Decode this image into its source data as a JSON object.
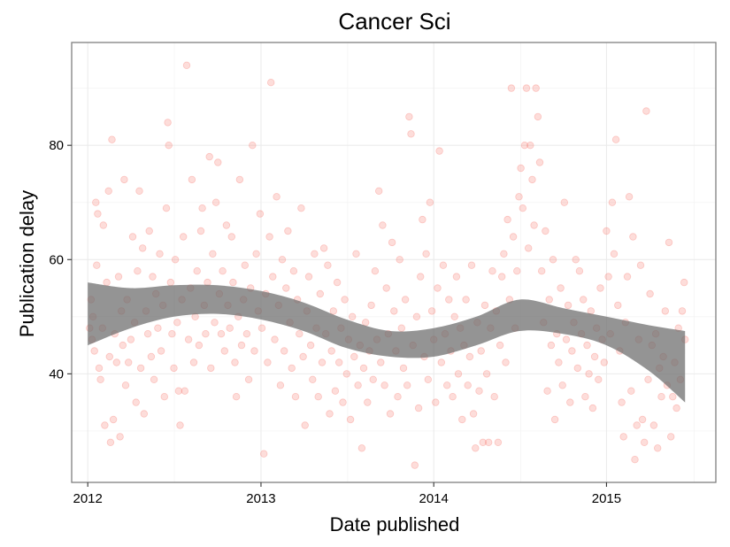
{
  "chart_data": {
    "type": "scatter",
    "title": "Cancer Sci",
    "xlabel": "Date published",
    "ylabel": "Publication delay",
    "x_ticks": [
      "2012",
      "2013",
      "2014",
      "2015"
    ],
    "y_ticks": [
      40,
      60,
      80
    ],
    "xlim": [
      "2011-11-28",
      "2015-08-20"
    ],
    "ylim": [
      21,
      98
    ],
    "grid": true,
    "point_color": "#f8766d",
    "point_opacity": 0.25,
    "band_color": "#6b6b6b",
    "points": [
      [
        "2012-01-05",
        48
      ],
      [
        "2012-01-08",
        53
      ],
      [
        "2012-01-10",
        46
      ],
      [
        "2012-01-12",
        50
      ],
      [
        "2012-01-15",
        44
      ],
      [
        "2012-01-18",
        70
      ],
      [
        "2012-01-20",
        59
      ],
      [
        "2012-01-22",
        68
      ],
      [
        "2012-01-25",
        41
      ],
      [
        "2012-01-28",
        39
      ],
      [
        "2012-02-01",
        48
      ],
      [
        "2012-02-03",
        66
      ],
      [
        "2012-02-06",
        31
      ],
      [
        "2012-02-10",
        56
      ],
      [
        "2012-02-14",
        72
      ],
      [
        "2012-02-16",
        43
      ],
      [
        "2012-02-18",
        28
      ],
      [
        "2012-02-21",
        81
      ],
      [
        "2012-02-24",
        32
      ],
      [
        "2012-02-27",
        47
      ],
      [
        "2012-03-02",
        42
      ],
      [
        "2012-03-06",
        57
      ],
      [
        "2012-03-09",
        29
      ],
      [
        "2012-03-12",
        51
      ],
      [
        "2012-03-15",
        45
      ],
      [
        "2012-03-18",
        74
      ],
      [
        "2012-03-21",
        38
      ],
      [
        "2012-03-24",
        53
      ],
      [
        "2012-03-27",
        42
      ],
      [
        "2012-04-01",
        46
      ],
      [
        "2012-04-05",
        64
      ],
      [
        "2012-04-09",
        49
      ],
      [
        "2012-04-12",
        35
      ],
      [
        "2012-04-15",
        58
      ],
      [
        "2012-04-19",
        72
      ],
      [
        "2012-04-22",
        41
      ],
      [
        "2012-04-26",
        62
      ],
      [
        "2012-04-29",
        33
      ],
      [
        "2012-05-03",
        51
      ],
      [
        "2012-05-07",
        47
      ],
      [
        "2012-05-10",
        65
      ],
      [
        "2012-05-14",
        43
      ],
      [
        "2012-05-17",
        57
      ],
      [
        "2012-05-20",
        39
      ],
      [
        "2012-05-24",
        54
      ],
      [
        "2012-05-28",
        48
      ],
      [
        "2012-06-01",
        61
      ],
      [
        "2012-06-04",
        44
      ],
      [
        "2012-06-08",
        52
      ],
      [
        "2012-06-11",
        36
      ],
      [
        "2012-06-15",
        69
      ],
      [
        "2012-06-18",
        84
      ],
      [
        "2012-06-20",
        80
      ],
      [
        "2012-06-24",
        56
      ],
      [
        "2012-06-27",
        47
      ],
      [
        "2012-07-01",
        41
      ],
      [
        "2012-07-04",
        60
      ],
      [
        "2012-07-08",
        49
      ],
      [
        "2012-07-11",
        37
      ],
      [
        "2012-07-14",
        31
      ],
      [
        "2012-07-18",
        53
      ],
      [
        "2012-07-21",
        64
      ],
      [
        "2012-07-24",
        37
      ],
      [
        "2012-07-28",
        94
      ],
      [
        "2012-08-01",
        46
      ],
      [
        "2012-08-05",
        55
      ],
      [
        "2012-08-08",
        74
      ],
      [
        "2012-08-12",
        42
      ],
      [
        "2012-08-15",
        50
      ],
      [
        "2012-08-19",
        58
      ],
      [
        "2012-08-23",
        45
      ],
      [
        "2012-08-27",
        65
      ],
      [
        "2012-08-30",
        69
      ],
      [
        "2012-09-03",
        52
      ],
      [
        "2012-09-06",
        47
      ],
      [
        "2012-09-10",
        56
      ],
      [
        "2012-09-14",
        78
      ],
      [
        "2012-09-17",
        41
      ],
      [
        "2012-09-21",
        61
      ],
      [
        "2012-09-25",
        49
      ],
      [
        "2012-09-28",
        70
      ],
      [
        "2012-10-02",
        77
      ],
      [
        "2012-10-05",
        54
      ],
      [
        "2012-10-09",
        47
      ],
      [
        "2012-10-12",
        58
      ],
      [
        "2012-10-16",
        44
      ],
      [
        "2012-10-20",
        66
      ],
      [
        "2012-10-23",
        52
      ],
      [
        "2012-10-27",
        48
      ],
      [
        "2012-10-31",
        64
      ],
      [
        "2012-11-03",
        56
      ],
      [
        "2012-11-07",
        42
      ],
      [
        "2012-11-10",
        36
      ],
      [
        "2012-11-14",
        50
      ],
      [
        "2012-11-17",
        74
      ],
      [
        "2012-11-21",
        45
      ],
      [
        "2012-11-25",
        53
      ],
      [
        "2012-11-28",
        59
      ],
      [
        "2012-12-02",
        47
      ],
      [
        "2012-12-06",
        39
      ],
      [
        "2012-12-10",
        55
      ],
      [
        "2012-12-14",
        80
      ],
      [
        "2012-12-18",
        44
      ],
      [
        "2012-12-22",
        61
      ],
      [
        "2012-12-26",
        51
      ],
      [
        "2012-12-30",
        68
      ],
      [
        "2013-01-03",
        48
      ],
      [
        "2013-01-07",
        26
      ],
      [
        "2013-01-11",
        54
      ],
      [
        "2013-01-15",
        42
      ],
      [
        "2013-01-19",
        64
      ],
      [
        "2013-01-22",
        91
      ],
      [
        "2013-01-26",
        57
      ],
      [
        "2013-01-30",
        46
      ],
      [
        "2013-02-03",
        71
      ],
      [
        "2013-02-07",
        52
      ],
      [
        "2013-02-11",
        38
      ],
      [
        "2013-02-15",
        60
      ],
      [
        "2013-02-19",
        44
      ],
      [
        "2013-02-23",
        55
      ],
      [
        "2013-02-27",
        65
      ],
      [
        "2013-03-03",
        49
      ],
      [
        "2013-03-07",
        41
      ],
      [
        "2013-03-11",
        58
      ],
      [
        "2013-03-15",
        36
      ],
      [
        "2013-03-19",
        53
      ],
      [
        "2013-03-23",
        47
      ],
      [
        "2013-03-27",
        69
      ],
      [
        "2013-03-31",
        43
      ],
      [
        "2013-04-04",
        31
      ],
      [
        "2013-04-08",
        51
      ],
      [
        "2013-04-12",
        57
      ],
      [
        "2013-04-16",
        45
      ],
      [
        "2013-04-20",
        39
      ],
      [
        "2013-04-24",
        61
      ],
      [
        "2013-04-28",
        48
      ],
      [
        "2013-05-02",
        36
      ],
      [
        "2013-05-06",
        54
      ],
      [
        "2013-05-10",
        42
      ],
      [
        "2013-05-14",
        62
      ],
      [
        "2013-05-18",
        47
      ],
      [
        "2013-05-22",
        59
      ],
      [
        "2013-05-26",
        33
      ],
      [
        "2013-05-30",
        44
      ],
      [
        "2013-06-03",
        51
      ],
      [
        "2013-06-07",
        37
      ],
      [
        "2013-06-11",
        56
      ],
      [
        "2013-06-15",
        42
      ],
      [
        "2013-06-19",
        48
      ],
      [
        "2013-06-23",
        35
      ],
      [
        "2013-06-27",
        53
      ],
      [
        "2013-07-01",
        40
      ],
      [
        "2013-07-05",
        46
      ],
      [
        "2013-07-09",
        32
      ],
      [
        "2013-07-13",
        50
      ],
      [
        "2013-07-17",
        43
      ],
      [
        "2013-07-21",
        61
      ],
      [
        "2013-07-25",
        38
      ],
      [
        "2013-07-29",
        45
      ],
      [
        "2013-08-02",
        27
      ],
      [
        "2013-08-06",
        41
      ],
      [
        "2013-08-10",
        49
      ],
      [
        "2013-08-14",
        35
      ],
      [
        "2013-08-18",
        44
      ],
      [
        "2013-08-22",
        52
      ],
      [
        "2013-08-26",
        39
      ],
      [
        "2013-08-30",
        58
      ],
      [
        "2013-09-03",
        46
      ],
      [
        "2013-09-07",
        72
      ],
      [
        "2013-09-11",
        42
      ],
      [
        "2013-09-15",
        66
      ],
      [
        "2013-09-19",
        38
      ],
      [
        "2013-09-23",
        55
      ],
      [
        "2013-09-27",
        47
      ],
      [
        "2013-10-01",
        33
      ],
      [
        "2013-10-05",
        63
      ],
      [
        "2013-10-09",
        51
      ],
      [
        "2013-10-13",
        44
      ],
      [
        "2013-10-17",
        36
      ],
      [
        "2013-10-21",
        60
      ],
      [
        "2013-10-25",
        48
      ],
      [
        "2013-10-29",
        41
      ],
      [
        "2013-11-02",
        53
      ],
      [
        "2013-11-06",
        38
      ],
      [
        "2013-11-10",
        85
      ],
      [
        "2013-11-14",
        82
      ],
      [
        "2013-11-18",
        45
      ],
      [
        "2013-11-22",
        24
      ],
      [
        "2013-11-26",
        50
      ],
      [
        "2013-11-30",
        34
      ],
      [
        "2013-12-04",
        57
      ],
      [
        "2013-12-08",
        67
      ],
      [
        "2013-12-12",
        43
      ],
      [
        "2013-12-16",
        61
      ],
      [
        "2013-12-20",
        39
      ],
      [
        "2013-12-24",
        70
      ],
      [
        "2013-12-28",
        51
      ],
      [
        "2014-01-01",
        46
      ],
      [
        "2014-01-05",
        35
      ],
      [
        "2014-01-09",
        55
      ],
      [
        "2014-01-13",
        79
      ],
      [
        "2014-01-17",
        42
      ],
      [
        "2014-01-21",
        59
      ],
      [
        "2014-01-25",
        47
      ],
      [
        "2014-01-29",
        38
      ],
      [
        "2014-02-02",
        53
      ],
      [
        "2014-02-06",
        44
      ],
      [
        "2014-02-10",
        36
      ],
      [
        "2014-02-14",
        50
      ],
      [
        "2014-02-18",
        57
      ],
      [
        "2014-02-22",
        40
      ],
      [
        "2014-02-26",
        48
      ],
      [
        "2014-03-02",
        32
      ],
      [
        "2014-03-06",
        45
      ],
      [
        "2014-03-10",
        53
      ],
      [
        "2014-03-14",
        38
      ],
      [
        "2014-03-18",
        43
      ],
      [
        "2014-03-22",
        59
      ],
      [
        "2014-03-26",
        33
      ],
      [
        "2014-03-30",
        27
      ],
      [
        "2014-04-03",
        49
      ],
      [
        "2014-04-07",
        37
      ],
      [
        "2014-04-11",
        44
      ],
      [
        "2014-04-15",
        28
      ],
      [
        "2014-04-19",
        52
      ],
      [
        "2014-04-23",
        40
      ],
      [
        "2014-04-27",
        28
      ],
      [
        "2014-05-01",
        48
      ],
      [
        "2014-05-05",
        58
      ],
      [
        "2014-05-09",
        36
      ],
      [
        "2014-05-13",
        51
      ],
      [
        "2014-05-17",
        28
      ],
      [
        "2014-05-21",
        45
      ],
      [
        "2014-05-25",
        57
      ],
      [
        "2014-05-29",
        61
      ],
      [
        "2014-06-02",
        42
      ],
      [
        "2014-06-06",
        67
      ],
      [
        "2014-06-10",
        53
      ],
      [
        "2014-06-14",
        90
      ],
      [
        "2014-06-18",
        64
      ],
      [
        "2014-06-22",
        48
      ],
      [
        "2014-06-26",
        58
      ],
      [
        "2014-06-30",
        71
      ],
      [
        "2014-07-04",
        76
      ],
      [
        "2014-07-08",
        69
      ],
      [
        "2014-07-12",
        80
      ],
      [
        "2014-07-16",
        90
      ],
      [
        "2014-07-20",
        62
      ],
      [
        "2014-07-24",
        80
      ],
      [
        "2014-07-28",
        74
      ],
      [
        "2014-08-01",
        66
      ],
      [
        "2014-08-05",
        90
      ],
      [
        "2014-08-09",
        85
      ],
      [
        "2014-08-13",
        77
      ],
      [
        "2014-08-17",
        58
      ],
      [
        "2014-08-21",
        49
      ],
      [
        "2014-08-25",
        65
      ],
      [
        "2014-08-29",
        37
      ],
      [
        "2014-09-02",
        53
      ],
      [
        "2014-09-06",
        45
      ],
      [
        "2014-09-10",
        60
      ],
      [
        "2014-09-14",
        32
      ],
      [
        "2014-09-18",
        47
      ],
      [
        "2014-09-22",
        42
      ],
      [
        "2014-09-26",
        55
      ],
      [
        "2014-09-30",
        38
      ],
      [
        "2014-10-04",
        70
      ],
      [
        "2014-10-08",
        46
      ],
      [
        "2014-10-12",
        52
      ],
      [
        "2014-10-16",
        35
      ],
      [
        "2014-10-20",
        44
      ],
      [
        "2014-10-24",
        49
      ],
      [
        "2014-10-28",
        60
      ],
      [
        "2014-11-01",
        41
      ],
      [
        "2014-11-05",
        58
      ],
      [
        "2014-11-09",
        47
      ],
      [
        "2014-11-13",
        53
      ],
      [
        "2014-11-17",
        36
      ],
      [
        "2014-11-21",
        45
      ],
      [
        "2014-11-25",
        40
      ],
      [
        "2014-11-29",
        51
      ],
      [
        "2014-12-03",
        34
      ],
      [
        "2014-12-07",
        43
      ],
      [
        "2014-12-11",
        48
      ],
      [
        "2014-12-15",
        39
      ],
      [
        "2014-12-19",
        55
      ],
      [
        "2014-12-23",
        46
      ],
      [
        "2014-12-27",
        42
      ],
      [
        "2015-01-01",
        65
      ],
      [
        "2015-01-05",
        57
      ],
      [
        "2015-01-09",
        47
      ],
      [
        "2015-01-13",
        70
      ],
      [
        "2015-01-17",
        61
      ],
      [
        "2015-01-21",
        81
      ],
      [
        "2015-01-25",
        52
      ],
      [
        "2015-01-29",
        44
      ],
      [
        "2015-02-02",
        35
      ],
      [
        "2015-02-06",
        29
      ],
      [
        "2015-02-10",
        49
      ],
      [
        "2015-02-14",
        57
      ],
      [
        "2015-02-18",
        71
      ],
      [
        "2015-02-22",
        37
      ],
      [
        "2015-02-26",
        64
      ],
      [
        "2015-03-02",
        25
      ],
      [
        "2015-03-06",
        31
      ],
      [
        "2015-03-10",
        46
      ],
      [
        "2015-03-14",
        59
      ],
      [
        "2015-03-18",
        32
      ],
      [
        "2015-03-22",
        28
      ],
      [
        "2015-03-26",
        86
      ],
      [
        "2015-03-30",
        39
      ],
      [
        "2015-04-03",
        54
      ],
      [
        "2015-04-07",
        45
      ],
      [
        "2015-04-11",
        31
      ],
      [
        "2015-04-15",
        47
      ],
      [
        "2015-04-19",
        27
      ],
      [
        "2015-04-23",
        41
      ],
      [
        "2015-04-27",
        36
      ],
      [
        "2015-05-01",
        43
      ],
      [
        "2015-05-05",
        51
      ],
      [
        "2015-05-09",
        38
      ],
      [
        "2015-05-13",
        63
      ],
      [
        "2015-05-17",
        29
      ],
      [
        "2015-05-21",
        36
      ],
      [
        "2015-05-25",
        42
      ],
      [
        "2015-05-29",
        34
      ],
      [
        "2015-06-02",
        48
      ],
      [
        "2015-06-06",
        39
      ],
      [
        "2015-06-10",
        51
      ],
      [
        "2015-06-14",
        56
      ],
      [
        "2015-06-16",
        46
      ]
    ],
    "smooth": [
      {
        "x": "2012-01-01",
        "lower": 45,
        "upper": 56
      },
      {
        "x": "2012-04-01",
        "lower": 48,
        "upper": 55
      },
      {
        "x": "2012-07-01",
        "lower": 50,
        "upper": 55.5
      },
      {
        "x": "2012-10-01",
        "lower": 50.5,
        "upper": 55.5
      },
      {
        "x": "2013-01-01",
        "lower": 49.5,
        "upper": 54.5
      },
      {
        "x": "2013-04-01",
        "lower": 47.5,
        "upper": 52.5
      },
      {
        "x": "2013-07-01",
        "lower": 44.5,
        "upper": 49.5
      },
      {
        "x": "2013-10-01",
        "lower": 43,
        "upper": 47.5
      },
      {
        "x": "2014-01-01",
        "lower": 43,
        "upper": 48
      },
      {
        "x": "2014-04-01",
        "lower": 45,
        "upper": 50
      },
      {
        "x": "2014-07-01",
        "lower": 47.5,
        "upper": 53
      },
      {
        "x": "2014-10-01",
        "lower": 47,
        "upper": 51.5
      },
      {
        "x": "2015-01-01",
        "lower": 45,
        "upper": 50
      },
      {
        "x": "2015-04-01",
        "lower": 40.5,
        "upper": 48.5
      },
      {
        "x": "2015-06-16",
        "lower": 35,
        "upper": 47.5
      }
    ]
  }
}
